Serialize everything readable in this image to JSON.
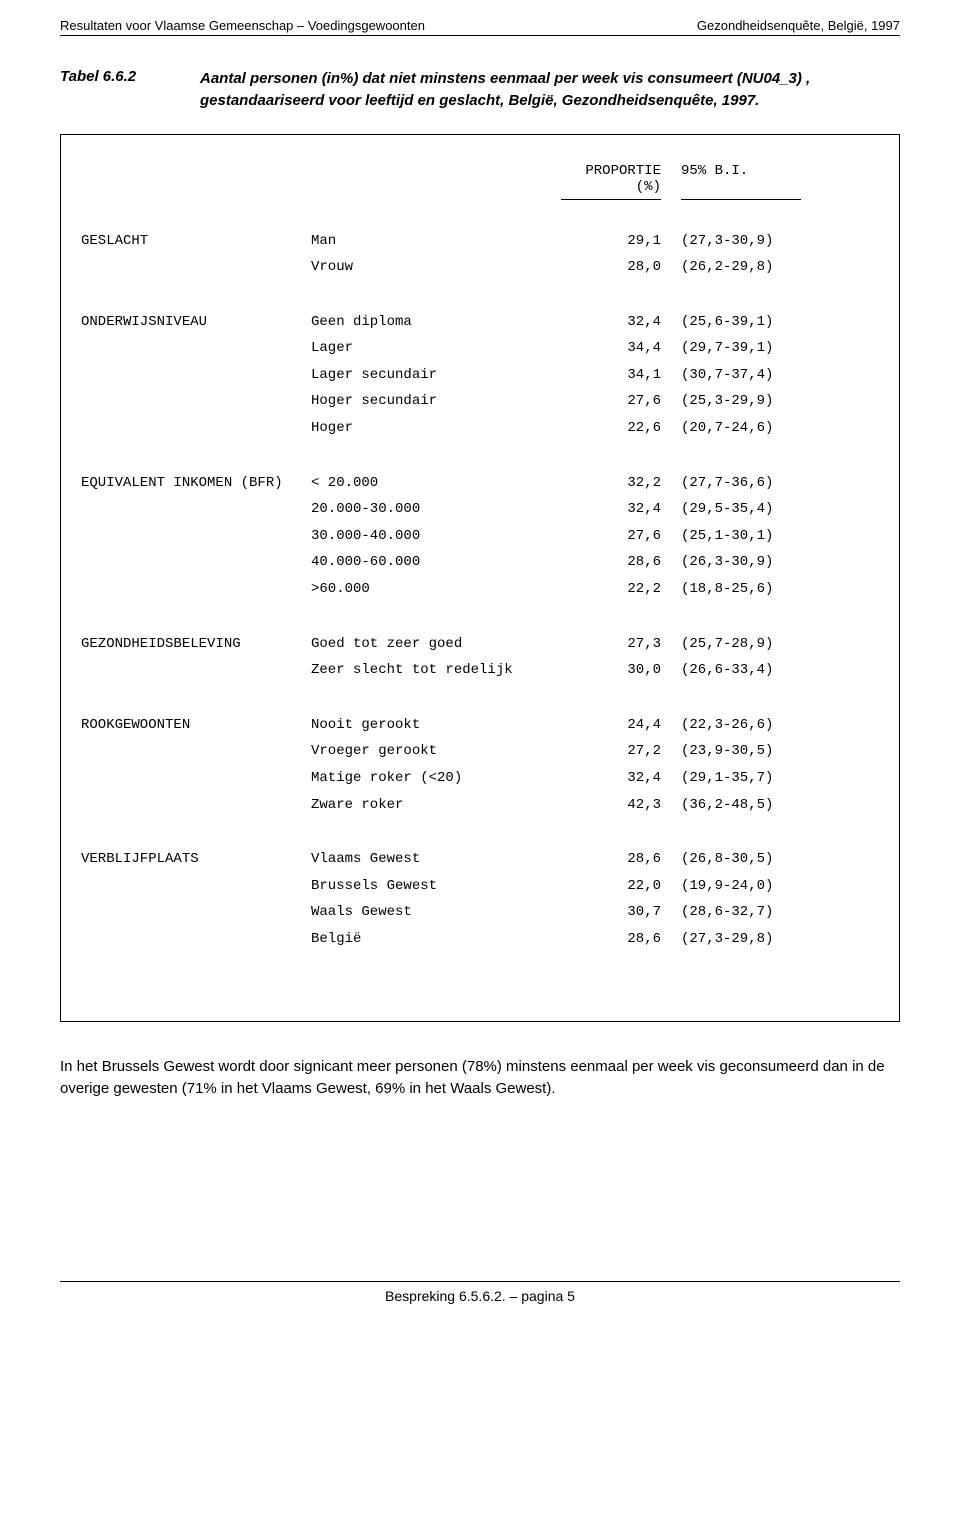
{
  "header_left": "Resultaten voor Vlaamse Gemeenschap – Voedingsgewoonten",
  "header_right": "Gezondheidsenquête, België, 1997",
  "table_label": "Tabel 6.6.2",
  "table_title": "Aantal personen (in%) dat niet minstens eenmaal per week vis consumeert (NU04_3) , gestandaariseerd voor leeftijd en geslacht, België, Gezondheidsenquête, 1997.",
  "col_prop": "PROPORTIE (%)",
  "col_ci": "95% B.I.",
  "groups": [
    {
      "category": "GESLACHT",
      "rows": [
        {
          "label": "Man",
          "value": "29,1",
          "ci": "(27,3-30,9)"
        },
        {
          "label": "Vrouw",
          "value": "28,0",
          "ci": "(26,2-29,8)"
        }
      ]
    },
    {
      "category": "ONDERWIJSNIVEAU",
      "rows": [
        {
          "label": "Geen diploma",
          "value": "32,4",
          "ci": "(25,6-39,1)"
        },
        {
          "label": "Lager",
          "value": "34,4",
          "ci": "(29,7-39,1)"
        },
        {
          "label": "Lager secundair",
          "value": "34,1",
          "ci": "(30,7-37,4)"
        },
        {
          "label": "Hoger secundair",
          "value": "27,6",
          "ci": "(25,3-29,9)"
        },
        {
          "label": "Hoger",
          "value": "22,6",
          "ci": "(20,7-24,6)"
        }
      ]
    },
    {
      "category": "EQUIVALENT INKOMEN (BFR)",
      "rows": [
        {
          "label": "< 20.000",
          "value": "32,2",
          "ci": "(27,7-36,6)"
        },
        {
          "label": "20.000-30.000",
          "value": "32,4",
          "ci": "(29,5-35,4)"
        },
        {
          "label": "30.000-40.000",
          "value": "27,6",
          "ci": "(25,1-30,1)"
        },
        {
          "label": "40.000-60.000",
          "value": "28,6",
          "ci": "(26,3-30,9)"
        },
        {
          "label": ">60.000",
          "value": "22,2",
          "ci": "(18,8-25,6)"
        }
      ]
    },
    {
      "category": "GEZONDHEIDSBELEVING",
      "rows": [
        {
          "label": "Goed tot zeer goed",
          "value": "27,3",
          "ci": "(25,7-28,9)"
        },
        {
          "label": "Zeer slecht tot redelijk",
          "value": "30,0",
          "ci": "(26,6-33,4)"
        }
      ]
    },
    {
      "category": "ROOKGEWOONTEN",
      "rows": [
        {
          "label": "Nooit gerookt",
          "value": "24,4",
          "ci": "(22,3-26,6)"
        },
        {
          "label": "Vroeger gerookt",
          "value": "27,2",
          "ci": "(23,9-30,5)"
        },
        {
          "label": "Matige roker (<20)",
          "value": "32,4",
          "ci": "(29,1-35,7)"
        },
        {
          "label": "Zware roker",
          "value": "42,3",
          "ci": "(36,2-48,5)"
        }
      ]
    },
    {
      "category": "VERBLIJFPLAATS",
      "rows": [
        {
          "label": "Vlaams Gewest",
          "value": "28,6",
          "ci": "(26,8-30,5)"
        },
        {
          "label": "Brussels Gewest",
          "value": "22,0",
          "ci": "(19,9-24,0)"
        },
        {
          "label": "Waals Gewest",
          "value": "30,7",
          "ci": "(28,6-32,7)"
        },
        {
          "label": "België",
          "value": "28,6",
          "ci": "(27,3-29,8)"
        }
      ]
    }
  ],
  "body_paragraph": "In het Brussels Gewest wordt door signicant meer personen (78%) minstens eenmaal per week vis geconsumeerd dan in de overige gewesten (71% in het Vlaams Gewest, 69% in het Waals Gewest).",
  "footer": "Bespreking 6.5.6.2. – pagina  5"
}
